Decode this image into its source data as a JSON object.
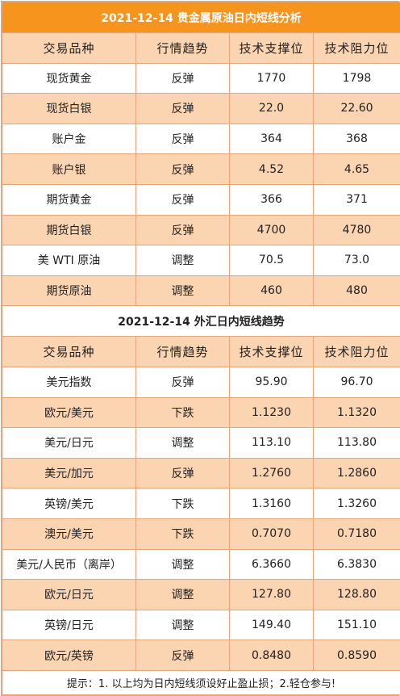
{
  "section1": {
    "date": "2021-12-14",
    "title": "贵金属原油日内短线分析",
    "headers": [
      "交易品种",
      "行情趋势",
      "技术支撑位",
      "技术阻力位"
    ],
    "rows": [
      [
        "现货黄金",
        "反弹",
        "1770",
        "1798"
      ],
      [
        "现货白银",
        "反弹",
        "22.0",
        "22.60"
      ],
      [
        "账户金",
        "反弹",
        "364",
        "368"
      ],
      [
        "账户银",
        "反弹",
        "4.52",
        "4.65"
      ],
      [
        "期货黄金",
        "反弹",
        "366",
        "371"
      ],
      [
        "期货白银",
        "反弹",
        "4700",
        "4780"
      ],
      [
        "美 WTI 原油",
        "调整",
        "70.5",
        "73.0"
      ],
      [
        "期货原油",
        "调整",
        "460",
        "480"
      ]
    ]
  },
  "section2": {
    "date": "2021-12-14",
    "title": "外汇日内短线趋势",
    "headers": [
      "交易品种",
      "行情趋势",
      "技术支撑位",
      "技术阻力位"
    ],
    "rows": [
      [
        "美元指数",
        "反弹",
        "95.90",
        "96.70"
      ],
      [
        "欧元/美元",
        "下跌",
        "1.1230",
        "1.1320"
      ],
      [
        "美元/日元",
        "调整",
        "113.10",
        "113.80"
      ],
      [
        "美元/加元",
        "反弹",
        "1.2760",
        "1.2860"
      ],
      [
        "英镑/美元",
        "下跌",
        "1.3160",
        "1.3260"
      ],
      [
        "澳元/美元",
        "下跌",
        "0.7070",
        "0.7180"
      ],
      [
        "美元/人民币（离岸）",
        "调整",
        "6.3660",
        "6.3830"
      ],
      [
        "欧元/日元",
        "调整",
        "127.80",
        "128.80"
      ],
      [
        "英镑/日元",
        "调整",
        "149.40",
        "151.10"
      ],
      [
        "欧元/英镑",
        "反弹",
        "0.8480",
        "0.8590"
      ]
    ]
  },
  "footer": {
    "note": "提示：1. 以上均为日内短线须设好止盈止损；2.轻仓参与!"
  },
  "colors": {
    "title_bg": "#f7941e",
    "shade_bg": "#fbd4b2",
    "border": "#e4a57a"
  }
}
